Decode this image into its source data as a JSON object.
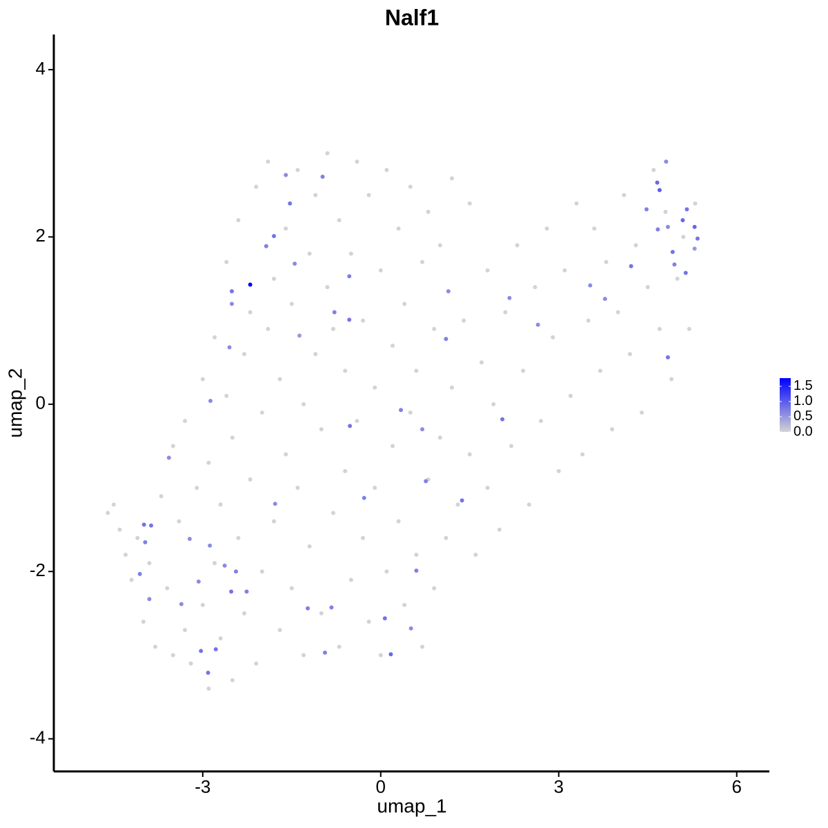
{
  "chart_data": {
    "type": "scatter",
    "title": "Nalf1",
    "x_label": "umap_1",
    "y_label": "umap_2",
    "xlim": [
      -5.51,
      6.55
    ],
    "xticks": [
      -3,
      0,
      3,
      6
    ],
    "ylim": [
      -4.39,
      4.42
    ],
    "yticks": [
      -4,
      -2,
      0,
      2,
      4
    ],
    "color_low": "#d3d3d3",
    "color_high": "#0000ff",
    "clim": [
      0,
      1.77
    ],
    "cticks": [
      {
        "value": 0,
        "label": "0.0"
      },
      {
        "value": 0.5,
        "label": "0.5"
      },
      {
        "value": 1,
        "label": "1.0"
      },
      {
        "value": 1.5,
        "label": "1.5"
      }
    ],
    "x": [
      -4.6,
      -4.5,
      -4.4,
      -4.3,
      -4.2,
      -4.1,
      -4.0,
      -3.9,
      -3.8,
      -3.7,
      -3.6,
      -3.5,
      -3.5,
      -3.4,
      -3.3,
      -3.3,
      -3.2,
      -3.1,
      -3.0,
      -3.0,
      -2.9,
      -2.9,
      -2.8,
      -2.8,
      -2.7,
      -2.7,
      -2.6,
      -2.6,
      -2.5,
      -2.5,
      -2.4,
      -2.4,
      -2.3,
      -2.3,
      -2.2,
      -2.2,
      -2.1,
      -2.1,
      -2.0,
      -2.0,
      -1.9,
      -1.9,
      -1.8,
      -1.8,
      -1.7,
      -1.7,
      -1.6,
      -1.6,
      -1.5,
      -1.5,
      -1.4,
      -1.4,
      -1.3,
      -1.3,
      -1.2,
      -1.2,
      -1.1,
      -1.1,
      -1.0,
      -1.0,
      -0.9,
      -0.9,
      -0.8,
      -0.8,
      -0.7,
      -0.7,
      -0.6,
      -0.6,
      -0.5,
      -0.5,
      -0.4,
      -0.4,
      -0.3,
      -0.3,
      -0.2,
      -0.2,
      -0.1,
      -0.1,
      0.0,
      0.0,
      0.1,
      0.1,
      0.2,
      0.2,
      0.3,
      0.3,
      0.4,
      0.4,
      0.5,
      0.5,
      0.6,
      0.6,
      0.7,
      0.7,
      0.8,
      0.8,
      0.9,
      0.9,
      1.0,
      1.0,
      1.1,
      1.2,
      1.2,
      1.3,
      1.4,
      1.5,
      1.5,
      1.6,
      1.7,
      1.8,
      1.8,
      1.9,
      2.0,
      2.1,
      2.2,
      2.3,
      2.4,
      2.5,
      2.6,
      2.7,
      2.8,
      2.9,
      3.0,
      3.1,
      3.2,
      3.3,
      3.4,
      3.5,
      3.6,
      3.7,
      3.8,
      3.9,
      4.0,
      4.1,
      4.2,
      4.3,
      4.4,
      4.5,
      4.6,
      4.7,
      4.8,
      4.9,
      5.0,
      5.1,
      5.2,
      5.3,
      -1.6,
      -0.98,
      -1.53,
      -1.8,
      -1.93,
      -1.45,
      -2.51,
      -2.51,
      -2.55,
      -1.37,
      -0.53,
      -0.78,
      -0.53,
      1.14,
      1.1,
      2.17,
      2.65,
      -2.87,
      -0.52,
      0.34,
      0.7,
      2.05,
      -3.57,
      0.76,
      -0.28,
      1.37,
      -1.78,
      -3.99,
      -3.87,
      -3.97,
      -3.22,
      -2.88,
      -2.63,
      -2.44,
      -4.06,
      -3.07,
      0.6,
      -2.52,
      -2.26,
      -3.9,
      -3.36,
      -1.23,
      -0.83,
      0.07,
      0.51,
      -3.03,
      -2.78,
      -0.94,
      0.17,
      -2.91,
      4.81,
      4.66,
      4.7,
      4.48,
      4.67,
      4.84,
      5.09,
      5.16,
      5.29,
      5.34,
      4.92,
      4.95,
      4.22,
      5.14,
      4.84,
      3.53,
      3.78,
      5.29,
      -2.2
    ],
    "y": [
      -1.3,
      -1.2,
      -1.5,
      -1.8,
      -2.1,
      -1.6,
      -2.6,
      -1.9,
      -2.9,
      -1.1,
      -2.2,
      -3.0,
      -0.5,
      -1.4,
      -2.7,
      -0.2,
      -3.1,
      -1.0,
      -2.4,
      0.3,
      -0.7,
      -3.4,
      -1.9,
      0.8,
      -1.2,
      -2.8,
      0.1,
      1.7,
      -0.4,
      -3.3,
      -1.6,
      2.2,
      0.6,
      -2.5,
      -0.9,
      1.1,
      -3.1,
      2.6,
      -0.1,
      -2.0,
      0.9,
      2.9,
      -1.4,
      1.5,
      -2.7,
      0.3,
      2.1,
      -0.6,
      -2.2,
      1.2,
      -1.0,
      2.8,
      0.0,
      -3.0,
      1.8,
      -1.7,
      0.6,
      2.5,
      -2.5,
      -0.3,
      1.4,
      3.0,
      -1.3,
      0.9,
      -2.9,
      2.2,
      -0.8,
      0.4,
      -2.1,
      1.8,
      2.9,
      -0.2,
      -1.6,
      1.0,
      -2.6,
      2.5,
      0.2,
      -1.0,
      1.6,
      -3.0,
      -2.0,
      2.8,
      0.7,
      -0.5,
      -1.4,
      2.1,
      -2.4,
      1.2,
      -0.1,
      2.6,
      -1.8,
      0.4,
      -2.9,
      1.7,
      -0.9,
      2.3,
      -2.2,
      0.9,
      -0.4,
      1.9,
      -1.6,
      0.2,
      2.7,
      -1.2,
      1.0,
      -0.6,
      2.4,
      -1.8,
      0.5,
      -1.0,
      1.6,
      0.0,
      -1.5,
      1.1,
      -0.5,
      1.9,
      0.4,
      -1.2,
      1.4,
      -0.2,
      2.1,
      0.8,
      -0.8,
      1.6,
      0.1,
      2.4,
      -0.6,
      1.0,
      2.1,
      0.4,
      1.7,
      -0.3,
      1.1,
      2.5,
      0.6,
      1.9,
      -0.1,
      1.4,
      2.8,
      0.9,
      2.3,
      0.3,
      1.5,
      2.0,
      0.9,
      2.4,
      2.74,
      2.72,
      2.4,
      2.01,
      1.89,
      1.68,
      1.35,
      1.2,
      0.68,
      0.82,
      1.53,
      1.1,
      1.01,
      1.35,
      0.78,
      1.27,
      0.95,
      0.04,
      -0.26,
      -0.07,
      -0.3,
      -0.18,
      -0.64,
      -0.92,
      -1.12,
      -1.15,
      -1.19,
      -1.44,
      -1.45,
      -1.65,
      -1.61,
      -1.69,
      -1.93,
      -2.0,
      -2.03,
      -2.12,
      -1.99,
      -2.24,
      -2.24,
      -2.33,
      -2.39,
      -2.44,
      -2.43,
      -2.56,
      -2.68,
      -2.95,
      -2.93,
      -2.97,
      -2.99,
      -3.21,
      2.9,
      2.65,
      2.56,
      2.33,
      2.09,
      2.12,
      2.2,
      2.33,
      2.12,
      1.98,
      1.82,
      1.67,
      1.65,
      1.57,
      0.56,
      1.42,
      1.26,
      1.86,
      1.43
    ],
    "values": [
      0,
      0,
      0,
      0,
      0,
      0,
      0,
      0,
      0,
      0,
      0,
      0,
      0,
      0,
      0,
      0,
      0,
      0,
      0,
      0,
      0,
      0,
      0,
      0,
      0,
      0,
      0,
      0,
      0,
      0,
      0,
      0,
      0,
      0,
      0,
      0,
      0,
      0,
      0,
      0,
      0,
      0,
      0,
      0,
      0,
      0,
      0,
      0,
      0,
      0,
      0,
      0,
      0,
      0,
      0,
      0,
      0,
      0,
      0,
      0,
      0,
      0,
      0,
      0,
      0,
      0,
      0,
      0,
      0,
      0,
      0,
      0,
      0,
      0,
      0,
      0,
      0,
      0,
      0,
      0,
      0,
      0,
      0,
      0,
      0,
      0,
      0,
      0,
      0,
      0,
      0,
      0,
      0,
      0,
      0,
      0,
      0,
      0,
      0,
      0,
      0,
      0,
      0,
      0,
      0,
      0,
      0,
      0,
      0,
      0,
      0,
      0,
      0,
      0,
      0,
      0,
      0,
      0,
      0,
      0,
      0,
      0,
      0,
      0,
      0,
      0,
      0,
      0,
      0,
      0,
      0,
      0,
      0,
      0,
      0,
      0,
      0,
      0,
      0,
      0,
      0,
      0,
      0,
      0,
      0,
      0,
      0.6,
      0.7,
      0.8,
      0.8,
      0.7,
      0.6,
      0.8,
      0.6,
      0.6,
      0.5,
      0.7,
      0.7,
      0.8,
      0.6,
      0.7,
      0.6,
      0.6,
      0.6,
      0.8,
      0.7,
      0.6,
      0.8,
      0.6,
      0.7,
      0.7,
      0.8,
      0.6,
      0.8,
      0.8,
      0.7,
      0.6,
      0.6,
      0.6,
      0.7,
      0.7,
      0.6,
      0.7,
      0.8,
      0.7,
      0.6,
      0.6,
      0.7,
      0.7,
      0.8,
      0.6,
      0.8,
      0.8,
      0.7,
      0.9,
      0.8,
      0.6,
      0.9,
      1.0,
      0.7,
      0.7,
      0.6,
      0.9,
      0.8,
      0.9,
      0.8,
      0.8,
      0.7,
      0.8,
      0.8,
      0.8,
      0.6,
      0.6,
      0.5,
      1.77
    ]
  }
}
